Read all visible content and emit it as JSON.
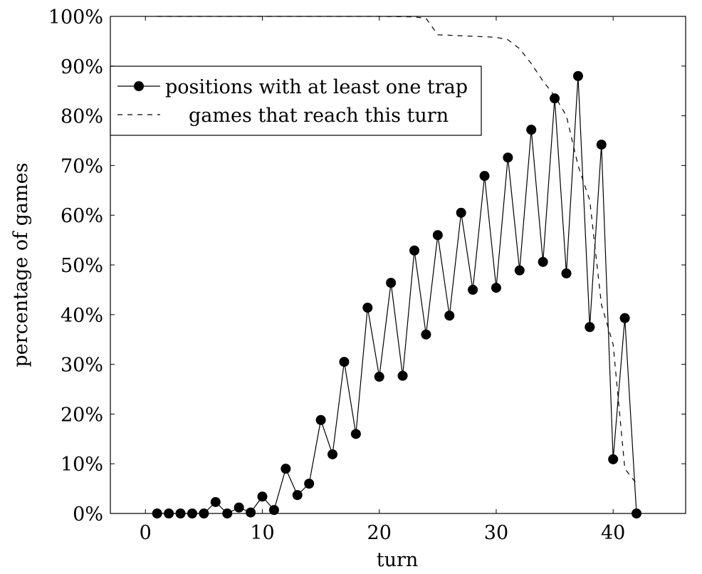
{
  "chart_data": {
    "type": "line",
    "title": "",
    "xlabel": "turn",
    "ylabel": "percentage of games",
    "xlim": [
      -3,
      46.2
    ],
    "ylim": [
      0,
      100
    ],
    "xticks": [
      0,
      10,
      20,
      30,
      40
    ],
    "xtick_labels": [
      "0",
      "10",
      "20",
      "30",
      "40"
    ],
    "yticks": [
      0,
      10,
      20,
      30,
      40,
      50,
      60,
      70,
      80,
      90,
      100
    ],
    "ytick_labels": [
      "0%",
      "10%",
      "20%",
      "30%",
      "40%",
      "50%",
      "60%",
      "70%",
      "80%",
      "90%",
      "100%"
    ],
    "grid": false,
    "legend_position": "upper-left",
    "series": [
      {
        "name": "positions with at least one trap",
        "style": "solid-markers",
        "x": [
          1,
          2,
          3,
          4,
          5,
          6,
          7,
          8,
          9,
          10,
          11,
          12,
          13,
          14,
          15,
          16,
          17,
          18,
          19,
          20,
          21,
          22,
          23,
          24,
          25,
          26,
          27,
          28,
          29,
          30,
          31,
          32,
          33,
          34,
          35,
          36,
          37,
          38,
          39,
          40,
          41,
          42
        ],
        "values": [
          0,
          0,
          0,
          0,
          0,
          2.3,
          0,
          1.2,
          0.2,
          3.4,
          0.7,
          9.0,
          3.7,
          6.0,
          18.8,
          11.9,
          30.5,
          16.0,
          41.4,
          27.5,
          46.4,
          27.7,
          52.9,
          36.0,
          56.0,
          39.8,
          60.5,
          45.0,
          67.9,
          45.4,
          71.6,
          48.9,
          77.2,
          50.6,
          83.5,
          48.3,
          88.0,
          37.5,
          74.2,
          10.9,
          39.3,
          0
        ]
      },
      {
        "name": "games that reach this turn",
        "style": "dashed",
        "x": [
          1,
          5,
          10,
          15,
          20,
          23,
          24,
          25,
          26,
          27,
          28,
          29,
          30,
          31,
          32,
          33,
          34,
          35,
          36,
          37,
          38,
          39,
          40,
          41,
          42
        ],
        "values": [
          100,
          100,
          100,
          100,
          100,
          99.9,
          99.6,
          96.3,
          96.2,
          96.1,
          96.0,
          95.9,
          95.8,
          95.3,
          93.5,
          90.5,
          87,
          84,
          80,
          70,
          63,
          42,
          34,
          9,
          6
        ]
      }
    ]
  }
}
